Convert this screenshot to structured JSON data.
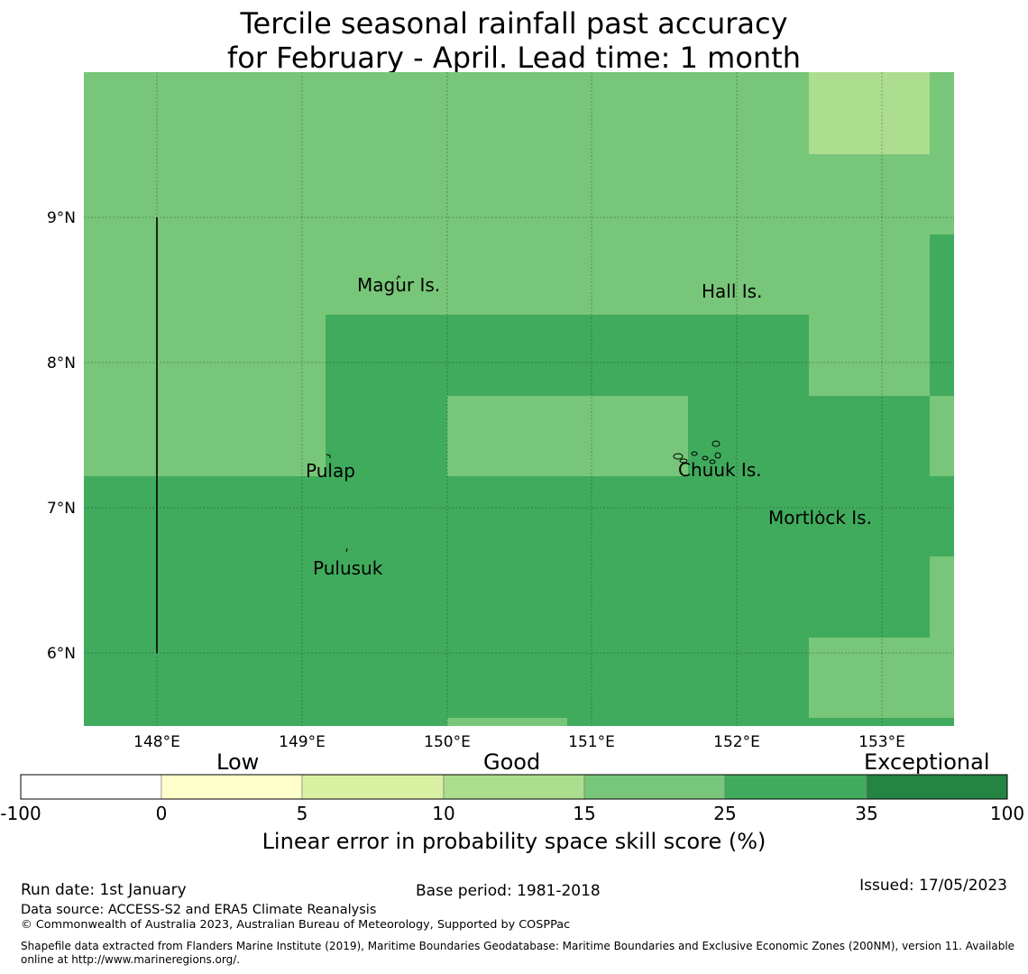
{
  "title": {
    "line1": "Tercile seasonal rainfall past accuracy",
    "line2": "for February - April. Lead time: 1 month"
  },
  "map": {
    "lon_ticks": [
      "148°E",
      "149°E",
      "150°E",
      "151°E",
      "152°E",
      "153°E"
    ],
    "lat_ticks": [
      "9°N",
      "8°N",
      "7°N",
      "6°N"
    ],
    "places": [
      {
        "name": "Magur Is.",
        "lon": 149.65,
        "lat": 8.55
      },
      {
        "name": "Hall Is.",
        "lon": 151.95,
        "lat": 8.5
      },
      {
        "name": "Pulap",
        "lon": 149.2,
        "lat": 7.25
      },
      {
        "name": "Chuuk Is.",
        "lon": 151.9,
        "lat": 7.25
      },
      {
        "name": "Mortlock Is.",
        "lon": 152.6,
        "lat": 6.93
      },
      {
        "name": "Pulusuk",
        "lon": 149.32,
        "lat": 6.6
      }
    ]
  },
  "colorbar": {
    "categories": [
      "Low",
      "Good",
      "Exceptional"
    ],
    "ticks": [
      "-100",
      "0",
      "5",
      "10",
      "15",
      "25",
      "35",
      "100"
    ],
    "colors": [
      "#ffffff",
      "#ffffcc",
      "#d9f0a3",
      "#addd8e",
      "#78c679",
      "#41ab5d",
      "#238443"
    ],
    "label": "Linear error in probability space skill score (%)"
  },
  "footer": {
    "run_date": "Run date: 1st January",
    "base_period": "Base period: 1981-2018",
    "issued": "Issued: 17/05/2023",
    "data_source": "Data source: ACCESS-S2 and ERA5 Climate Reanalysis",
    "copyright": "© Commonwealth of Australia 2023, Australian Bureau of Meteorology, Supported by COSPPac",
    "shapefile": "Shapefile data extracted from Flanders Marine Institute (2019), Maritime Boundaries Geodatabase: Maritime Boundaries and Exclusive Economic Zones (200NM), version 11. Available online at http://www.marineregions.org/."
  }
}
